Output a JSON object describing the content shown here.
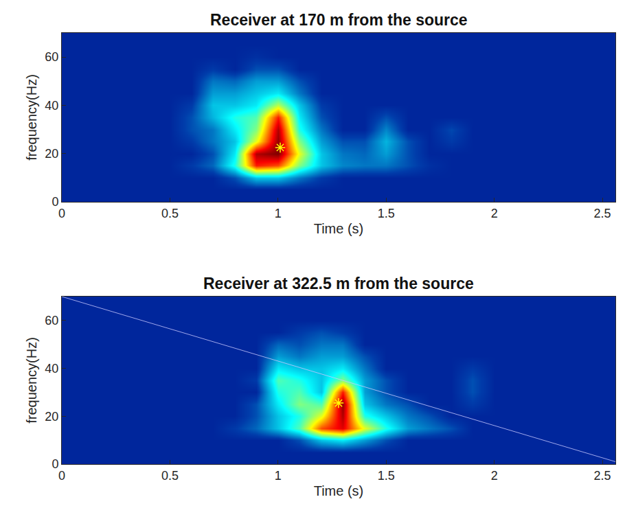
{
  "chart_data": [
    {
      "type": "heatmap",
      "title": "Receiver at 170 m from the source",
      "x_label": "Time (s)",
      "y_label": "frequency(Hz)",
      "color": "jet",
      "color_range": [
        0,
        1
      ],
      "xlim": [
        0,
        2.56
      ],
      "xticks": [
        0,
        0.5,
        1,
        1.5,
        2,
        2.5
      ],
      "ylim": [
        0,
        70
      ],
      "yticks": [
        0,
        20,
        40,
        60
      ],
      "x": [
        0,
        0.1,
        0.2,
        0.3,
        0.4,
        0.5,
        0.6,
        0.7,
        0.8,
        0.9,
        1,
        1.1,
        1.2,
        1.3,
        1.4,
        1.5,
        1.6,
        1.7,
        1.8,
        1.9,
        2,
        2.1,
        2.2,
        2.3,
        2.4,
        2.5,
        2.6
      ],
      "y": [
        0,
        5,
        10,
        15,
        20,
        25,
        30,
        35,
        40,
        45,
        50,
        55,
        60,
        65,
        70
      ],
      "cells": [
        [
          0.08,
          0.08,
          0.08,
          0.08,
          0.08,
          0.08,
          0.08,
          0.08,
          0.08,
          0.08,
          0.08,
          0.08,
          0.08,
          0.08,
          0.08,
          0.08,
          0.08,
          0.08,
          0.08,
          0.08,
          0.08,
          0.08,
          0.08,
          0.08,
          0.08,
          0.08,
          0.08
        ],
        [
          0.08,
          0.08,
          0.08,
          0.08,
          0.08,
          0.08,
          0.08,
          0.08,
          0.08,
          0.08,
          0.08,
          0.08,
          0.08,
          0.08,
          0.08,
          0.08,
          0.08,
          0.08,
          0.08,
          0.08,
          0.08,
          0.08,
          0.08,
          0.08,
          0.08,
          0.08,
          0.08
        ],
        [
          0.08,
          0.08,
          0.08,
          0.08,
          0.08,
          0.08,
          0.08,
          0.08,
          0.15,
          0.3,
          0.3,
          0.2,
          0.12,
          0.08,
          0.08,
          0.08,
          0.08,
          0.08,
          0.08,
          0.08,
          0.08,
          0.08,
          0.08,
          0.08,
          0.08,
          0.08,
          0.08
        ],
        [
          0.08,
          0.08,
          0.08,
          0.08,
          0.08,
          0.08,
          0.12,
          0.18,
          0.4,
          0.85,
          0.8,
          0.5,
          0.3,
          0.22,
          0.2,
          0.2,
          0.15,
          0.1,
          0.08,
          0.08,
          0.08,
          0.08,
          0.08,
          0.08,
          0.08,
          0.08,
          0.08
        ],
        [
          0.08,
          0.08,
          0.08,
          0.08,
          0.08,
          0.08,
          0.08,
          0.15,
          0.35,
          0.95,
          1.0,
          0.6,
          0.3,
          0.2,
          0.18,
          0.25,
          0.15,
          0.08,
          0.08,
          0.08,
          0.08,
          0.08,
          0.08,
          0.08,
          0.08,
          0.08,
          0.08
        ],
        [
          0.08,
          0.08,
          0.08,
          0.08,
          0.08,
          0.08,
          0.12,
          0.2,
          0.3,
          0.6,
          0.98,
          0.5,
          0.25,
          0.15,
          0.15,
          0.28,
          0.15,
          0.08,
          0.12,
          0.08,
          0.08,
          0.08,
          0.08,
          0.08,
          0.08,
          0.08,
          0.08
        ],
        [
          0.08,
          0.08,
          0.08,
          0.08,
          0.08,
          0.08,
          0.15,
          0.2,
          0.35,
          0.5,
          0.95,
          0.4,
          0.2,
          0.08,
          0.08,
          0.22,
          0.08,
          0.08,
          0.14,
          0.08,
          0.08,
          0.08,
          0.08,
          0.08,
          0.08,
          0.08,
          0.08
        ],
        [
          0.08,
          0.08,
          0.08,
          0.08,
          0.08,
          0.08,
          0.15,
          0.28,
          0.4,
          0.45,
          0.85,
          0.35,
          0.15,
          0.08,
          0.08,
          0.15,
          0.08,
          0.08,
          0.08,
          0.08,
          0.08,
          0.08,
          0.08,
          0.08,
          0.08,
          0.08,
          0.08
        ],
        [
          0.08,
          0.08,
          0.08,
          0.08,
          0.08,
          0.08,
          0.12,
          0.3,
          0.3,
          0.35,
          0.55,
          0.3,
          0.12,
          0.08,
          0.08,
          0.08,
          0.08,
          0.08,
          0.08,
          0.08,
          0.08,
          0.08,
          0.08,
          0.08,
          0.08,
          0.08,
          0.08
        ],
        [
          0.08,
          0.08,
          0.08,
          0.08,
          0.08,
          0.08,
          0.08,
          0.25,
          0.25,
          0.3,
          0.35,
          0.2,
          0.08,
          0.08,
          0.08,
          0.08,
          0.08,
          0.08,
          0.08,
          0.08,
          0.08,
          0.08,
          0.08,
          0.08,
          0.08,
          0.08,
          0.08
        ],
        [
          0.08,
          0.08,
          0.08,
          0.08,
          0.08,
          0.08,
          0.08,
          0.2,
          0.18,
          0.25,
          0.25,
          0.15,
          0.08,
          0.08,
          0.08,
          0.08,
          0.08,
          0.08,
          0.08,
          0.08,
          0.08,
          0.08,
          0.08,
          0.08,
          0.08,
          0.08,
          0.08
        ],
        [
          0.08,
          0.08,
          0.08,
          0.08,
          0.08,
          0.08,
          0.08,
          0.12,
          0.08,
          0.15,
          0.15,
          0.08,
          0.08,
          0.08,
          0.08,
          0.08,
          0.08,
          0.08,
          0.08,
          0.08,
          0.08,
          0.08,
          0.08,
          0.08,
          0.08,
          0.08,
          0.08
        ],
        [
          0.08,
          0.08,
          0.08,
          0.08,
          0.08,
          0.08,
          0.08,
          0.08,
          0.08,
          0.1,
          0.08,
          0.08,
          0.08,
          0.08,
          0.08,
          0.08,
          0.08,
          0.08,
          0.08,
          0.08,
          0.08,
          0.08,
          0.08,
          0.08,
          0.08,
          0.08,
          0.08
        ],
        [
          0.08,
          0.08,
          0.08,
          0.08,
          0.08,
          0.08,
          0.08,
          0.08,
          0.08,
          0.08,
          0.08,
          0.08,
          0.08,
          0.08,
          0.08,
          0.08,
          0.08,
          0.08,
          0.08,
          0.08,
          0.08,
          0.08,
          0.08,
          0.08,
          0.08,
          0.08,
          0.08
        ],
        [
          0.08,
          0.08,
          0.08,
          0.08,
          0.08,
          0.08,
          0.08,
          0.08,
          0.08,
          0.08,
          0.08,
          0.08,
          0.08,
          0.08,
          0.08,
          0.08,
          0.08,
          0.08,
          0.08,
          0.08,
          0.08,
          0.08,
          0.08,
          0.08,
          0.08,
          0.08,
          0.08
        ]
      ],
      "peak": {
        "x": 1.01,
        "y": 22.5,
        "marker": "asterisk",
        "color": "#ffff00"
      }
    },
    {
      "type": "heatmap",
      "title": "Receiver at 322.5 m from the source",
      "x_label": "Time (s)",
      "y_label": "frequency(Hz)",
      "color": "jet",
      "color_range": [
        0,
        1
      ],
      "xlim": [
        0,
        2.56
      ],
      "xticks": [
        0,
        0.5,
        1,
        1.5,
        2,
        2.5
      ],
      "ylim": [
        0,
        70
      ],
      "yticks": [
        0,
        20,
        40,
        60
      ],
      "x": [
        0,
        0.1,
        0.2,
        0.3,
        0.4,
        0.5,
        0.6,
        0.7,
        0.8,
        0.9,
        1,
        1.1,
        1.2,
        1.3,
        1.4,
        1.5,
        1.6,
        1.7,
        1.8,
        1.9,
        2,
        2.1,
        2.2,
        2.3,
        2.4,
        2.5,
        2.6
      ],
      "y": [
        0,
        5,
        10,
        15,
        20,
        25,
        30,
        35,
        40,
        45,
        50,
        55,
        60,
        65,
        70
      ],
      "cells": [
        [
          0.08,
          0.08,
          0.08,
          0.08,
          0.08,
          0.08,
          0.08,
          0.08,
          0.08,
          0.08,
          0.08,
          0.08,
          0.08,
          0.08,
          0.08,
          0.08,
          0.08,
          0.08,
          0.08,
          0.08,
          0.08,
          0.08,
          0.08,
          0.08,
          0.08,
          0.08,
          0.08
        ],
        [
          0.08,
          0.08,
          0.08,
          0.08,
          0.08,
          0.08,
          0.08,
          0.08,
          0.08,
          0.08,
          0.08,
          0.08,
          0.08,
          0.08,
          0.08,
          0.08,
          0.08,
          0.08,
          0.08,
          0.08,
          0.08,
          0.08,
          0.08,
          0.08,
          0.08,
          0.08,
          0.08
        ],
        [
          0.08,
          0.08,
          0.08,
          0.08,
          0.08,
          0.08,
          0.08,
          0.08,
          0.08,
          0.08,
          0.08,
          0.15,
          0.3,
          0.35,
          0.25,
          0.15,
          0.08,
          0.08,
          0.08,
          0.08,
          0.08,
          0.08,
          0.08,
          0.08,
          0.08,
          0.08,
          0.08
        ],
        [
          0.08,
          0.08,
          0.08,
          0.08,
          0.08,
          0.08,
          0.08,
          0.08,
          0.12,
          0.18,
          0.3,
          0.45,
          0.8,
          0.9,
          0.6,
          0.4,
          0.25,
          0.2,
          0.15,
          0.08,
          0.08,
          0.08,
          0.08,
          0.08,
          0.08,
          0.08,
          0.08
        ],
        [
          0.08,
          0.08,
          0.08,
          0.08,
          0.08,
          0.08,
          0.08,
          0.08,
          0.08,
          0.15,
          0.3,
          0.4,
          0.6,
          0.95,
          0.4,
          0.3,
          0.2,
          0.15,
          0.08,
          0.08,
          0.08,
          0.08,
          0.08,
          0.08,
          0.08,
          0.08,
          0.08
        ],
        [
          0.08,
          0.08,
          0.08,
          0.08,
          0.08,
          0.08,
          0.08,
          0.08,
          0.08,
          0.15,
          0.35,
          0.5,
          0.45,
          0.98,
          0.3,
          0.2,
          0.15,
          0.08,
          0.08,
          0.12,
          0.08,
          0.08,
          0.08,
          0.08,
          0.08,
          0.08,
          0.08
        ],
        [
          0.08,
          0.08,
          0.08,
          0.08,
          0.08,
          0.08,
          0.08,
          0.08,
          0.08,
          0.08,
          0.4,
          0.45,
          0.3,
          0.85,
          0.25,
          0.15,
          0.08,
          0.08,
          0.08,
          0.15,
          0.08,
          0.08,
          0.08,
          0.08,
          0.08,
          0.08,
          0.08
        ],
        [
          0.08,
          0.08,
          0.08,
          0.08,
          0.08,
          0.08,
          0.08,
          0.08,
          0.08,
          0.12,
          0.45,
          0.4,
          0.3,
          0.5,
          0.25,
          0.15,
          0.08,
          0.08,
          0.08,
          0.15,
          0.08,
          0.08,
          0.08,
          0.08,
          0.08,
          0.08,
          0.08
        ],
        [
          0.08,
          0.08,
          0.08,
          0.08,
          0.08,
          0.08,
          0.08,
          0.08,
          0.08,
          0.08,
          0.35,
          0.3,
          0.3,
          0.35,
          0.2,
          0.08,
          0.08,
          0.08,
          0.08,
          0.12,
          0.08,
          0.08,
          0.08,
          0.08,
          0.08,
          0.08,
          0.08
        ],
        [
          0.08,
          0.08,
          0.08,
          0.08,
          0.08,
          0.08,
          0.08,
          0.08,
          0.08,
          0.08,
          0.25,
          0.2,
          0.25,
          0.25,
          0.15,
          0.08,
          0.08,
          0.08,
          0.08,
          0.08,
          0.08,
          0.08,
          0.08,
          0.08,
          0.08,
          0.08,
          0.08
        ],
        [
          0.08,
          0.08,
          0.08,
          0.08,
          0.08,
          0.08,
          0.08,
          0.08,
          0.08,
          0.08,
          0.18,
          0.15,
          0.2,
          0.2,
          0.08,
          0.08,
          0.08,
          0.08,
          0.08,
          0.08,
          0.08,
          0.08,
          0.08,
          0.08,
          0.08,
          0.08,
          0.08
        ],
        [
          0.08,
          0.08,
          0.08,
          0.08,
          0.08,
          0.08,
          0.08,
          0.08,
          0.08,
          0.08,
          0.08,
          0.12,
          0.15,
          0.12,
          0.08,
          0.08,
          0.08,
          0.08,
          0.08,
          0.08,
          0.08,
          0.08,
          0.08,
          0.08,
          0.08,
          0.08,
          0.08
        ],
        [
          0.08,
          0.08,
          0.08,
          0.08,
          0.08,
          0.08,
          0.08,
          0.08,
          0.08,
          0.08,
          0.08,
          0.08,
          0.08,
          0.08,
          0.08,
          0.08,
          0.08,
          0.08,
          0.08,
          0.08,
          0.08,
          0.08,
          0.08,
          0.08,
          0.08,
          0.08,
          0.08
        ],
        [
          0.08,
          0.08,
          0.08,
          0.08,
          0.08,
          0.08,
          0.08,
          0.08,
          0.08,
          0.08,
          0.08,
          0.08,
          0.08,
          0.08,
          0.08,
          0.08,
          0.08,
          0.08,
          0.08,
          0.08,
          0.08,
          0.08,
          0.08,
          0.08,
          0.08,
          0.08,
          0.08
        ],
        [
          0.08,
          0.08,
          0.08,
          0.08,
          0.08,
          0.08,
          0.08,
          0.08,
          0.08,
          0.08,
          0.08,
          0.08,
          0.08,
          0.08,
          0.08,
          0.08,
          0.08,
          0.08,
          0.08,
          0.08,
          0.08,
          0.08,
          0.08,
          0.08,
          0.08,
          0.08,
          0.08
        ]
      ],
      "peak": {
        "x": 1.28,
        "y": 25.5,
        "marker": "asterisk",
        "color": "#ffff00"
      },
      "line": {
        "x": [
          0,
          2.56
        ],
        "y": [
          70,
          1
        ],
        "color": "#c8c8ff",
        "line_style": "solid"
      }
    }
  ]
}
